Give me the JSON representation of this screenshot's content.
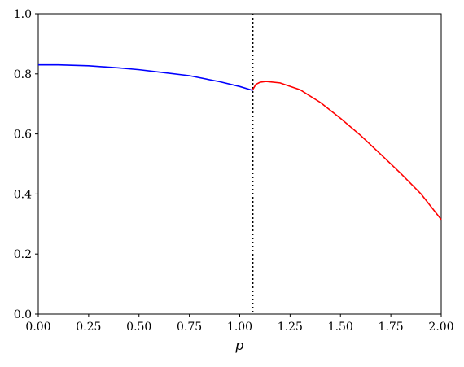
{
  "chart_data": {
    "type": "line",
    "x_label": "p",
    "xlim": [
      0,
      2
    ],
    "xticks": [
      {
        "value": 0,
        "label": "0.00"
      },
      {
        "value": 0.25,
        "label": "0.25"
      },
      {
        "value": 0.5,
        "label": "0.50"
      },
      {
        "value": 0.75,
        "label": "0.75"
      },
      {
        "value": 1,
        "label": "1.00"
      },
      {
        "value": 1.25,
        "label": "1.25"
      },
      {
        "value": 1.5,
        "label": "1.50"
      },
      {
        "value": 1.75,
        "label": "1.75"
      },
      {
        "value": 2,
        "label": "2.00"
      }
    ],
    "ylim": [
      0,
      1
    ],
    "yticks": [
      {
        "value": 0,
        "label": "0.0"
      },
      {
        "value": 0.2,
        "label": "0.2"
      },
      {
        "value": 0.4,
        "label": "0.4"
      },
      {
        "value": 0.6,
        "label": "0.6"
      },
      {
        "value": 0.8,
        "label": "0.8"
      },
      {
        "value": 1,
        "label": "1.0"
      }
    ],
    "vline": 1.065,
    "vline_color": "#000000",
    "series": [
      {
        "color": "#0000ff",
        "x": [
          0,
          0.1,
          0.25,
          0.4,
          0.5,
          0.6,
          0.75,
          0.9,
          1.0,
          1.065
        ],
        "values": [
          0.83,
          0.83,
          0.827,
          0.82,
          0.814,
          0.806,
          0.794,
          0.774,
          0.758,
          0.745
        ]
      },
      {
        "color": "#ff0000",
        "x": [
          1.065,
          1.08,
          1.1,
          1.13,
          1.2,
          1.3,
          1.4,
          1.5,
          1.6,
          1.7,
          1.8,
          1.9,
          2.0
        ],
        "values": [
          0.748,
          0.765,
          0.772,
          0.775,
          0.77,
          0.747,
          0.705,
          0.652,
          0.595,
          0.532,
          0.468,
          0.4,
          0.315
        ]
      }
    ]
  }
}
